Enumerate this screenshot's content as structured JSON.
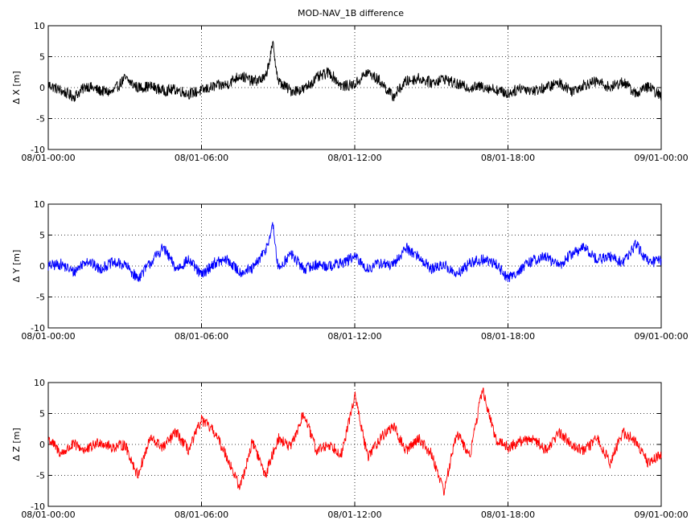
{
  "chart_data": [
    {
      "type": "line",
      "title": "MOD-NAV_1B difference",
      "ylabel": "Δ X [m]",
      "xlabel": "",
      "ylim": [
        -10,
        10
      ],
      "yticks": [
        -10,
        -5,
        0,
        5,
        10
      ],
      "xticks": [
        "08/01-00:00",
        "08/01-06:00",
        "08/01-12:00",
        "08/01-18:00",
        "09/01-00:00"
      ],
      "xrange_hours": [
        0,
        24
      ],
      "grid": true,
      "color": "#000000",
      "series": [
        {
          "x": [
            0,
            0.5,
            1,
            1.5,
            2,
            2.5,
            3,
            3.5,
            4,
            4.5,
            5,
            5.5,
            6,
            6.5,
            7,
            7.5,
            8,
            8.5,
            8.8,
            9,
            9.5,
            10,
            10.5,
            11,
            11.5,
            12,
            12.5,
            13,
            13.5,
            14,
            14.5,
            15,
            15.5,
            16,
            16.5,
            17,
            17.5,
            18,
            18.5,
            19,
            19.5,
            20,
            20.5,
            21,
            21.5,
            22,
            22.5,
            23,
            23.5,
            24
          ],
          "y": [
            0.5,
            -0.5,
            -1.5,
            0.3,
            -0.5,
            -0.8,
            1.5,
            0,
            0.2,
            -0.5,
            -0.3,
            -1,
            -0.5,
            0.2,
            0.5,
            2,
            1,
            1.5,
            7,
            1,
            -0.5,
            -0.3,
            1.5,
            2.5,
            0.2,
            0.5,
            2.5,
            1,
            -1.5,
            1,
            1.5,
            0.8,
            1.5,
            0.5,
            0,
            0.2,
            -0.3,
            -1,
            0,
            -0.5,
            0,
            0.8,
            -0.5,
            0.5,
            1,
            0,
            1,
            -1,
            0.2,
            -1.5
          ]
        }
      ]
    },
    {
      "type": "line",
      "title": "",
      "ylabel": "Δ Y [m]",
      "xlabel": "",
      "ylim": [
        -10,
        10
      ],
      "yticks": [
        -10,
        -5,
        0,
        5,
        10
      ],
      "xticks": [
        "08/01-00:00",
        "08/01-06:00",
        "08/01-12:00",
        "08/01-18:00",
        "09/01-00:00"
      ],
      "xrange_hours": [
        0,
        24
      ],
      "grid": true,
      "color": "#0000ff",
      "series": [
        {
          "x": [
            0,
            0.5,
            1,
            1.5,
            2,
            2.5,
            3,
            3.5,
            4,
            4.5,
            5,
            5.5,
            6,
            6.5,
            7,
            7.5,
            8,
            8.5,
            8.8,
            9,
            9.5,
            10,
            10.5,
            11,
            11.5,
            12,
            12.5,
            13,
            13.5,
            14,
            14.5,
            15,
            15.5,
            16,
            16.5,
            17,
            17.5,
            18,
            18.5,
            19,
            19.5,
            20,
            20.5,
            21,
            21.5,
            22,
            22.5,
            23,
            23.5,
            24
          ],
          "y": [
            0,
            0.3,
            -1,
            1,
            -0.5,
            0.5,
            0.2,
            -2,
            0.5,
            3,
            -0.5,
            1,
            -1.5,
            0.5,
            1,
            -1,
            -0.5,
            2.5,
            6.5,
            -0.5,
            2,
            -0.5,
            0.2,
            0,
            0.5,
            1.5,
            -0.5,
            0.5,
            0,
            3,
            1.5,
            -0.5,
            0.2,
            -1.5,
            0.5,
            1,
            0.5,
            -2,
            -0.5,
            1,
            1.5,
            0,
            2,
            3,
            1,
            1.5,
            0.5,
            3.5,
            0.5,
            1
          ]
        }
      ]
    },
    {
      "type": "line",
      "title": "",
      "ylabel": "Δ Z [m]",
      "xlabel": "",
      "ylim": [
        -10,
        10
      ],
      "yticks": [
        -10,
        -5,
        0,
        5,
        10
      ],
      "xticks": [
        "08/01-00:00",
        "08/01-06:00",
        "08/01-12:00",
        "08/01-18:00",
        "09/01-00:00"
      ],
      "xrange_hours": [
        0,
        24
      ],
      "grid": true,
      "color": "#ff0000",
      "series": [
        {
          "x": [
            0,
            0.5,
            1,
            1.5,
            2,
            2.5,
            3,
            3.5,
            4,
            4.5,
            5,
            5.5,
            6,
            6.5,
            7,
            7.5,
            8,
            8.5,
            9,
            9.5,
            10,
            10.5,
            11,
            11.5,
            12,
            12.5,
            13,
            13.5,
            14,
            14.5,
            15,
            15.5,
            16,
            16.5,
            17,
            17.5,
            18,
            18.5,
            19,
            19.5,
            20,
            20.5,
            21,
            21.5,
            22,
            22.5,
            23,
            23.5,
            24
          ],
          "y": [
            1,
            -1.5,
            0,
            -1,
            0.5,
            -0.5,
            0,
            -5,
            1,
            -0.5,
            2,
            -1,
            4,
            2,
            -2,
            -7,
            0.5,
            -5,
            1,
            -0.5,
            5,
            -1,
            0,
            -1.5,
            8,
            -2,
            1,
            3,
            -1,
            1,
            -1.5,
            -7.5,
            2,
            -2,
            9,
            1,
            -0.5,
            0.5,
            1,
            -1,
            2,
            0,
            -1,
            1,
            -3,
            2,
            0.5,
            -3,
            -1.5
          ]
        }
      ]
    }
  ]
}
